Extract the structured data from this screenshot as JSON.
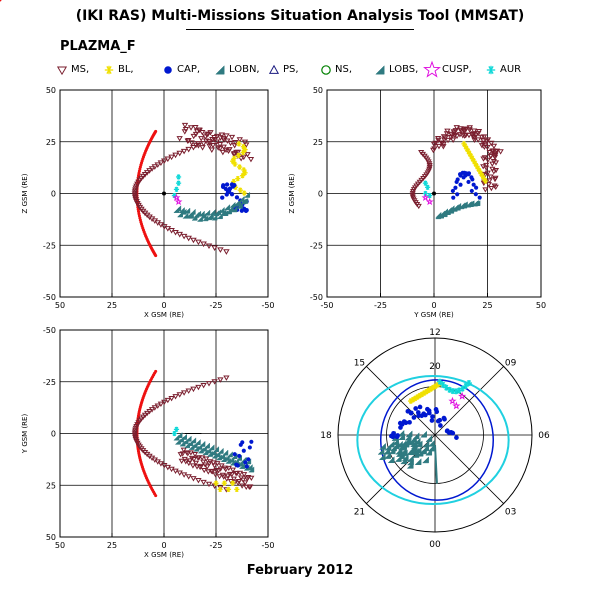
{
  "header": {
    "title": "(IKI RAS) Multi-Missions Situation Analysis Tool (MMSAT)",
    "subtitle": "PLAZMA_F",
    "footer": "February 2012"
  },
  "legend": [
    {
      "label": "MS,",
      "icon": "triangle-down-icon",
      "color": "#7a1e2e"
    },
    {
      "label": "BL,",
      "icon": "asterisk-icon",
      "color": "#f0e000"
    },
    {
      "label": "CAP,",
      "icon": "filled-circle-icon",
      "color": "#0018d0"
    },
    {
      "label": "LOBN,",
      "icon": "filled-triangle-icon",
      "color": "#2f7a80"
    },
    {
      "label": "PS,",
      "icon": "open-triangle-icon",
      "color": "#1a1a80"
    },
    {
      "label": "NS,",
      "icon": "open-circle-icon",
      "color": "#008000"
    },
    {
      "label": "LOBS,",
      "icon": "filled-triangle-icon",
      "color": "#2f7a80"
    },
    {
      "label": "CUSP,",
      "icon": "star-icon",
      "color": "#e010e0"
    },
    {
      "label": "AUR",
      "icon": "asterisk-icon",
      "color": "#10d8d8"
    }
  ],
  "colors": {
    "magnetopause": "#ee1111",
    "bowshock": "#6e1e2a",
    "ms": "#7a1e2e",
    "bl": "#f0e000",
    "cap": "#0018d0",
    "lobe": "#2f7a80",
    "cusp": "#e010e0",
    "aur": "#10d8d8",
    "polar_outer": "#20d0e0",
    "polar_inner": "#0018d0"
  },
  "chart_data": [
    {
      "type": "scatter",
      "panel": "x-z",
      "xlabel": "X GSM (RE)",
      "ylabel": "Z GSM (RE)",
      "xlim": [
        50,
        -50
      ],
      "ylim": [
        -50,
        50
      ],
      "xticks": [
        "50",
        "25",
        "0",
        "-25",
        "-50"
      ],
      "yticks": [
        "50",
        "25",
        "0",
        "-25",
        "-50"
      ],
      "grid": true,
      "series": [
        {
          "name": "MS",
          "x": [
            2,
            -5,
            -12,
            -18,
            -24,
            -28,
            -30,
            -32,
            -34
          ],
          "y": [
            28,
            29,
            30,
            30,
            29,
            28,
            27,
            26,
            25
          ]
        },
        {
          "name": "BL",
          "x": [
            -36,
            -38,
            -39,
            -40
          ],
          "y": [
            22,
            15,
            8,
            2
          ]
        },
        {
          "name": "CAP",
          "x": [
            -30,
            -33,
            -36,
            -39,
            -40,
            -38
          ],
          "y": [
            0,
            -4,
            -8,
            -4,
            2,
            -6
          ]
        },
        {
          "name": "LOBS",
          "x": [
            -8,
            -15,
            -22,
            -28,
            -33,
            -37,
            -40
          ],
          "y": [
            -7,
            -10,
            -11,
            -10,
            -7,
            -4,
            0
          ]
        },
        {
          "name": "CUSP",
          "x": [
            -6,
            -7
          ],
          "y": [
            -2,
            -4
          ]
        },
        {
          "name": "AUR",
          "x": [
            -6,
            -7,
            -7
          ],
          "y": [
            2,
            5,
            8
          ]
        }
      ]
    },
    {
      "type": "scatter",
      "panel": "y-z",
      "xlabel": "Y GSM (RE)",
      "ylabel": "Z GSM (RE)",
      "xlim": [
        -50,
        50
      ],
      "ylim": [
        -50,
        50
      ],
      "xticks": [
        "-50",
        "-25",
        "0",
        "25",
        "50"
      ],
      "yticks": [
        "50",
        "25",
        "0",
        "-25",
        "-50"
      ],
      "grid": true,
      "series": [
        {
          "name": "MS",
          "x": [
            -2,
            5,
            12,
            18,
            22,
            26,
            28,
            30
          ],
          "y": [
            20,
            28,
            32,
            32,
            30,
            28,
            24,
            20
          ]
        },
        {
          "name": "BL",
          "x": [
            14,
            18,
            22,
            24
          ],
          "y": [
            24,
            20,
            14,
            8
          ]
        },
        {
          "name": "CAP",
          "x": [
            10,
            12,
            15,
            17,
            18,
            20
          ],
          "y": [
            0,
            5,
            10,
            14,
            10,
            4
          ]
        },
        {
          "name": "LOBS",
          "x": [
            2,
            6,
            10,
            14,
            18,
            20
          ],
          "y": [
            -8,
            -10,
            -10,
            -6,
            -2,
            2
          ]
        },
        {
          "name": "CUSP",
          "x": [
            -4,
            -2
          ],
          "y": [
            -2,
            -4
          ]
        },
        {
          "name": "AUR",
          "x": [
            -4,
            -3,
            -2
          ],
          "y": [
            0,
            3,
            -1
          ]
        }
      ]
    },
    {
      "type": "scatter",
      "panel": "x-y",
      "xlabel": "X GSM (RE)",
      "ylabel": "Y GSM (RE)",
      "xlim": [
        50,
        -50
      ],
      "ylim": [
        -50,
        50
      ],
      "xticks": [
        "50",
        "25",
        "0",
        "-25",
        "-50"
      ],
      "yticks": [
        "-50",
        "-25",
        "0",
        "25",
        "50"
      ],
      "grid": true,
      "series": [
        {
          "name": "MS",
          "x": [
            -12,
            -18,
            -24,
            -28,
            -30
          ],
          "y": [
            14,
            18,
            22,
            24,
            26
          ]
        },
        {
          "name": "BL",
          "x": [
            -24,
            -34
          ],
          "y": [
            26,
            24
          ]
        },
        {
          "name": "CAP",
          "x": [
            -36,
            -40,
            -42
          ],
          "y": [
            12,
            16,
            14
          ]
        },
        {
          "name": "LOBS",
          "x": [
            -8,
            -15,
            -22,
            -30,
            -38
          ],
          "y": [
            4,
            8,
            12,
            16,
            16
          ]
        },
        {
          "name": "AUR",
          "x": [
            -6
          ],
          "y": [
            -2
          ]
        }
      ]
    },
    {
      "type": "scatter",
      "panel": "polar",
      "angle_labels": [
        "12",
        "09",
        "06",
        "03",
        "00",
        "21",
        "18",
        "15"
      ],
      "radial_labels": [
        "20"
      ],
      "grid": true,
      "series": [
        {
          "name": "BL",
          "x": [
            -0.1,
            0.0,
            0.1
          ],
          "y": [
            0.45,
            0.5,
            0.55
          ]
        },
        {
          "name": "CAP",
          "x": [
            -0.45,
            -0.35,
            -0.2,
            0.05,
            0.2
          ],
          "y": [
            -0.1,
            0.0,
            0.15,
            0.25,
            0.1
          ]
        },
        {
          "name": "LOBS",
          "x": [
            -0.45,
            -0.4,
            -0.3,
            -0.2,
            -0.1
          ],
          "y": [
            -0.05,
            -0.15,
            -0.2,
            -0.25,
            -0.2
          ]
        },
        {
          "name": "CUSP",
          "x": [
            0.25,
            0.3
          ],
          "y": [
            0.25,
            0.3
          ]
        },
        {
          "name": "AUR",
          "x": [
            0.1,
            0.2,
            0.3
          ],
          "y": [
            0.5,
            0.55,
            0.45
          ]
        }
      ]
    }
  ]
}
